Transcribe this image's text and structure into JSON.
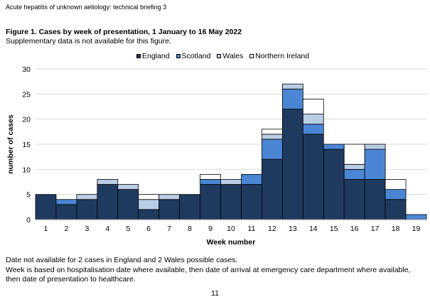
{
  "header": {
    "text": "Acute hepatitis of unknown aetiology: technical briefing 3"
  },
  "figure": {
    "title": "Figure 1. Cases by week of presentation, 1 January to 16 May 2022",
    "subtitle": "Supplementary data is not available for this figure."
  },
  "chart_data": {
    "type": "bar",
    "stacked": true,
    "categories": [
      "1",
      "2",
      "3",
      "4",
      "5",
      "6",
      "7",
      "8",
      "9",
      "10",
      "11",
      "12",
      "13",
      "14",
      "15",
      "16",
      "17",
      "18",
      "19"
    ],
    "series": [
      {
        "name": "England",
        "color": "#1f3a5f",
        "values": [
          5,
          3,
          4,
          7,
          6,
          2,
          4,
          5,
          7,
          7,
          7,
          12,
          22,
          17,
          14,
          8,
          8,
          4,
          0
        ]
      },
      {
        "name": "Scotland",
        "color": "#4a86d4",
        "values": [
          0,
          1,
          0,
          0,
          0,
          0,
          0,
          0,
          1,
          0,
          2,
          4,
          4,
          2,
          1,
          2,
          6,
          2,
          1
        ]
      },
      {
        "name": "Wales",
        "color": "#b9cde5",
        "values": [
          0,
          0,
          1,
          1,
          1,
          2,
          1,
          0,
          0,
          1,
          0,
          1,
          1,
          2,
          0,
          1,
          1,
          0,
          0
        ]
      },
      {
        "name": "Northern Ireland",
        "color": "#ffffff",
        "values": [
          0,
          0,
          0,
          0,
          0,
          1,
          0,
          0,
          1,
          0,
          0,
          1,
          0,
          3,
          0,
          4,
          0,
          2,
          0
        ]
      }
    ],
    "xlabel": "Week number",
    "ylabel": "number of cases",
    "ylim": [
      0,
      30
    ],
    "yticks": [
      0,
      5,
      10,
      15,
      20,
      25,
      30
    ],
    "grid": "horizontal",
    "legend": "top"
  },
  "notes": {
    "note1": "Date not available for 2 cases in England and 2 Wales possible cases.",
    "note2": "Week is based on hospitalisation date where available, then date of arrival at emergency care department where available, then date of presentation to healthcare."
  },
  "page_number": "11"
}
